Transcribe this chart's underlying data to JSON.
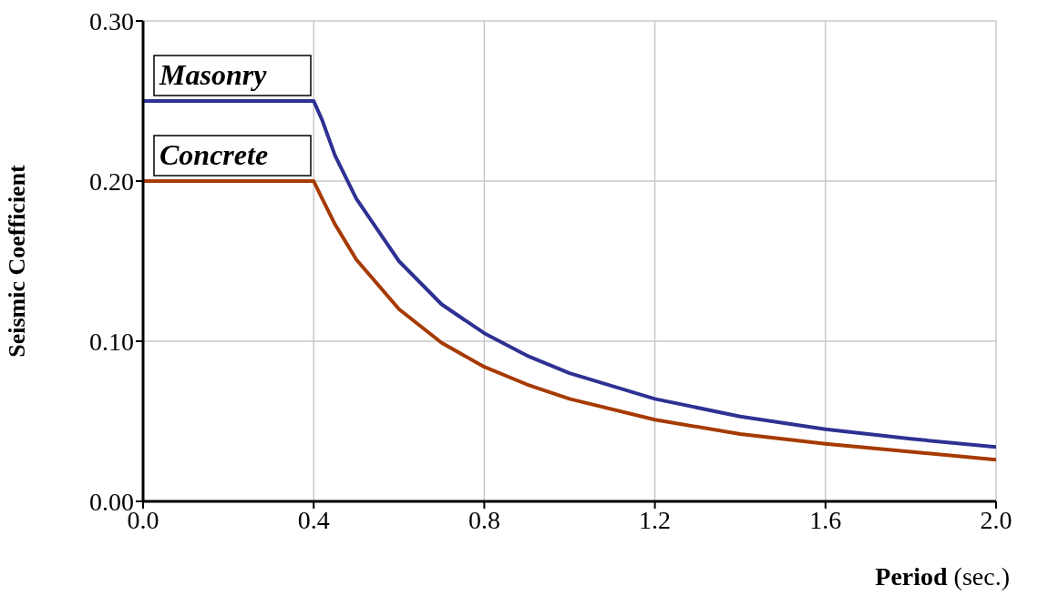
{
  "chart_data": {
    "type": "line",
    "xlabel": "Period (sec.)",
    "ylabel": "Seismic Coefficient",
    "x": [
      0,
      0.4,
      0.42,
      0.45,
      0.5,
      0.6,
      0.7,
      0.8,
      0.9,
      1.0,
      1.2,
      1.4,
      1.6,
      1.8,
      2.0
    ],
    "series": [
      {
        "name": "Masonry",
        "color": "#2e3192",
        "values": [
          0.25,
          0.25,
          0.238,
          0.216,
          0.189,
          0.15,
          0.123,
          0.105,
          0.091,
          0.08,
          0.064,
          0.053,
          0.045,
          0.039,
          0.034
        ]
      },
      {
        "name": "Concrete",
        "color": "#a63a00",
        "values": [
          0.2,
          0.2,
          0.189,
          0.173,
          0.151,
          0.12,
          0.099,
          0.084,
          0.073,
          0.064,
          0.051,
          0.042,
          0.036,
          0.031,
          0.026
        ]
      }
    ],
    "xlim": [
      0,
      2.0
    ],
    "xticks": [
      {
        "value": 0,
        "label": "0.0"
      },
      {
        "value": 0.4,
        "label": "0.4"
      },
      {
        "value": 0.8,
        "label": "0.8"
      },
      {
        "value": 1.2,
        "label": "1.2"
      },
      {
        "value": 1.6,
        "label": "1.6"
      },
      {
        "value": 2.0,
        "label": "2.0"
      }
    ],
    "ylim": [
      0,
      0.3
    ],
    "yticks": [
      {
        "value": 0,
        "label": "0.00"
      },
      {
        "value": 0.1,
        "label": "0.10"
      },
      {
        "value": 0.2,
        "label": "0.20"
      },
      {
        "value": 0.3,
        "label": "0.30"
      }
    ],
    "grid": true,
    "marker": "none",
    "line_style": "solid"
  }
}
